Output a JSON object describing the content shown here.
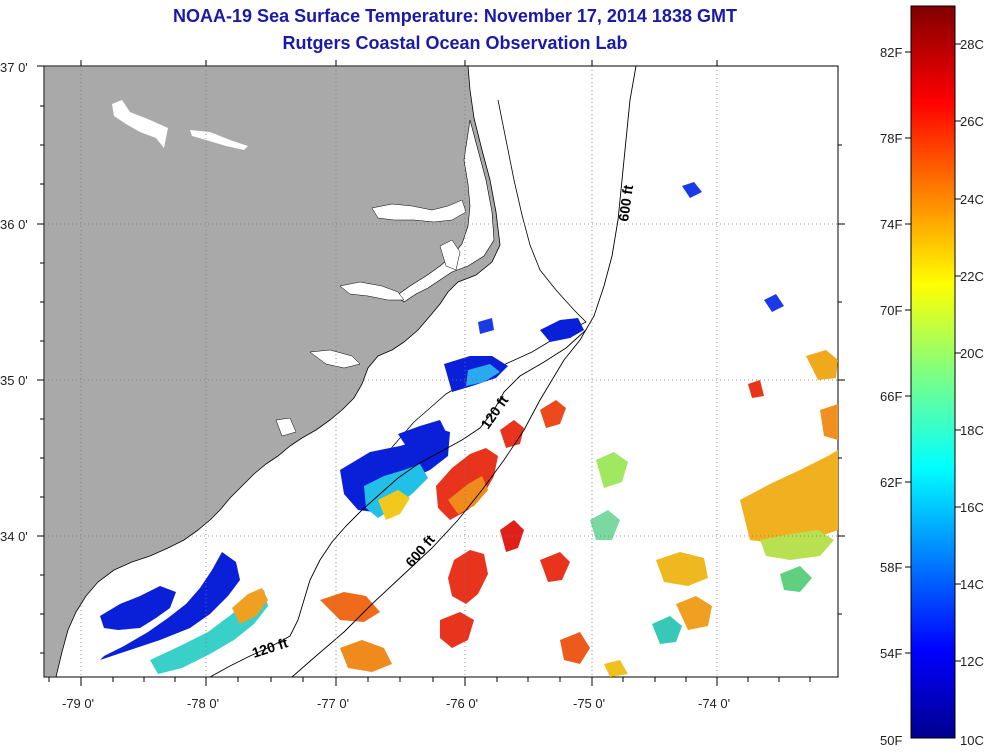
{
  "title": {
    "line1": "NOAA-19 Sea Surface Temperature:  November 17, 2014 1838 GMT",
    "line2": "Rutgers Coastal Ocean Observation Lab"
  },
  "axes": {
    "lat_labels": [
      "37 0'",
      "36 0'",
      "35 0'",
      "34 0'"
    ],
    "lon_labels": [
      "-79 0'",
      "-78 0'",
      "-77 0'",
      "-76 0'",
      "-75 0'",
      "-74 0'"
    ]
  },
  "contours": {
    "depth_120": "120 ft",
    "depth_600": "600 ft"
  },
  "colorbar": {
    "fahrenheit_labels": [
      "82F",
      "78F",
      "74F",
      "70F",
      "66F",
      "62F",
      "58F",
      "54F",
      "50F"
    ],
    "celsius_labels": [
      "28C",
      "26C",
      "24C",
      "22C",
      "20C",
      "18C",
      "16C",
      "14C",
      "12C",
      "10C"
    ]
  },
  "colors": {
    "land": "#a9a9a9",
    "title_blue": "#1a1aa8",
    "grid": "#777777"
  }
}
